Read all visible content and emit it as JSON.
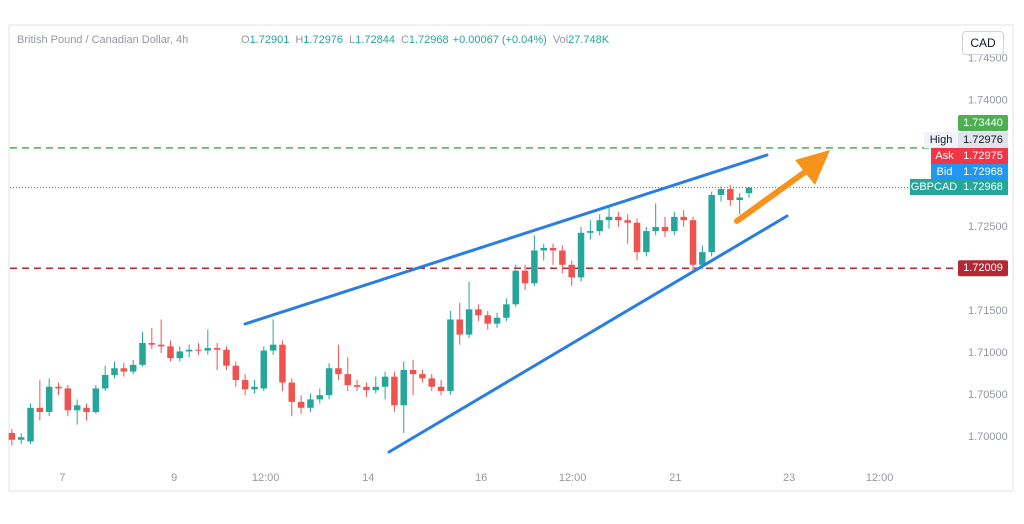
{
  "chart_data": {
    "type": "candlestick",
    "title": "British Pound / Canadian Dollar, 4h",
    "quote": [
      {
        "key": "O",
        "value": "1.72901"
      },
      {
        "key": "H",
        "value": "1.72976"
      },
      {
        "key": "L",
        "value": "1.72844"
      },
      {
        "key": "C",
        "value": "1.72968"
      }
    ],
    "change": "+0.00067 (+0.04%)",
    "volume": {
      "key": "Vol",
      "value": "27.748K"
    },
    "currency": "CAD",
    "up_color": "#26a69a",
    "down_color": "#ef5350",
    "open": [
      1.7005,
      1.6997,
      1.6995,
      1.7035,
      1.703,
      1.706,
      1.7058,
      1.7032,
      1.7035,
      1.703,
      1.7058,
      1.7074,
      1.7082,
      1.7078,
      1.7086,
      1.7112,
      1.711,
      1.7108,
      1.7094,
      1.7102,
      1.7104,
      1.7103,
      1.7106,
      1.7104,
      1.7085,
      1.7068,
      1.7057,
      1.7058,
      1.7103,
      1.711,
      1.7065,
      1.7042,
      1.7035,
      1.7045,
      1.705,
      1.7082,
      1.7075,
      1.7062,
      1.706,
      1.7056,
      1.706,
      1.7072,
      1.7038,
      1.708,
      1.7075,
      1.707,
      1.706,
      1.7055,
      1.714,
      1.7122,
      1.7152,
      1.7145,
      1.7135,
      1.7142,
      1.7158,
      1.7198,
      1.7183,
      1.7222,
      1.7225,
      1.7222,
      1.7205,
      1.719,
      1.7243,
      1.7245,
      1.7258,
      1.7262,
      1.7258,
      1.7255,
      1.722,
      1.7245,
      1.725,
      1.7245,
      1.7262,
      1.7258,
      1.7205,
      1.722,
      1.7288,
      1.7295,
      1.7282,
      1.72901
    ],
    "high": [
      1.701,
      1.7005,
      1.704,
      1.7068,
      1.707,
      1.7065,
      1.7062,
      1.7045,
      1.704,
      1.7062,
      1.7085,
      1.709,
      1.7088,
      1.7092,
      1.7125,
      1.713,
      1.714,
      1.7115,
      1.7108,
      1.711,
      1.7112,
      1.7128,
      1.7112,
      1.7108,
      1.709,
      1.7075,
      1.7068,
      1.7108,
      1.714,
      1.7115,
      1.707,
      1.705,
      1.7052,
      1.7058,
      1.7088,
      1.711,
      1.7095,
      1.7068,
      1.7065,
      1.7072,
      1.7078,
      1.7078,
      1.709,
      1.7092,
      1.708,
      1.7075,
      1.7068,
      1.715,
      1.716,
      1.7185,
      1.7158,
      1.715,
      1.7148,
      1.7165,
      1.7205,
      1.7205,
      1.724,
      1.723,
      1.723,
      1.7228,
      1.721,
      1.725,
      1.7258,
      1.7265,
      1.7275,
      1.7268,
      1.7265,
      1.726,
      1.725,
      1.7278,
      1.7262,
      1.7268,
      1.727,
      1.7262,
      1.7228,
      1.7292,
      1.7298,
      1.73,
      1.729,
      1.72976
    ],
    "low": [
      1.699,
      1.6992,
      1.6992,
      1.702,
      1.7025,
      1.705,
      1.7025,
      1.7015,
      1.702,
      1.7028,
      1.7055,
      1.707,
      1.7072,
      1.7075,
      1.7084,
      1.7105,
      1.71,
      1.709,
      1.709,
      1.7095,
      1.7098,
      1.7098,
      1.708,
      1.708,
      1.706,
      1.705,
      1.7052,
      1.7055,
      1.7098,
      1.7055,
      1.7025,
      1.7028,
      1.703,
      1.704,
      1.7045,
      1.7068,
      1.7055,
      1.7055,
      1.7048,
      1.7052,
      1.7045,
      1.703,
      1.7005,
      1.705,
      1.7065,
      1.7055,
      1.705,
      1.705,
      1.711,
      1.7118,
      1.7138,
      1.7128,
      1.713,
      1.7138,
      1.7155,
      1.7175,
      1.718,
      1.721,
      1.7205,
      1.7195,
      1.718,
      1.7185,
      1.7235,
      1.724,
      1.7248,
      1.725,
      1.723,
      1.721,
      1.7215,
      1.724,
      1.7238,
      1.724,
      1.725,
      1.7195,
      1.72,
      1.7215,
      1.728,
      1.7275,
      1.7265,
      1.72844
    ],
    "close": [
      1.6997,
      1.7,
      1.7035,
      1.703,
      1.706,
      1.7058,
      1.7032,
      1.7038,
      1.703,
      1.7058,
      1.7074,
      1.7082,
      1.7078,
      1.7086,
      1.7112,
      1.711,
      1.7108,
      1.7094,
      1.7102,
      1.7104,
      1.7103,
      1.7106,
      1.7104,
      1.7085,
      1.7068,
      1.7057,
      1.706,
      1.7103,
      1.711,
      1.7065,
      1.7042,
      1.7035,
      1.7045,
      1.705,
      1.7082,
      1.7075,
      1.7062,
      1.706,
      1.7056,
      1.706,
      1.7072,
      1.7038,
      1.708,
      1.7075,
      1.707,
      1.706,
      1.7055,
      1.714,
      1.7122,
      1.7152,
      1.7145,
      1.7135,
      1.7142,
      1.7158,
      1.7198,
      1.7183,
      1.7222,
      1.7225,
      1.7222,
      1.7205,
      1.719,
      1.7243,
      1.7245,
      1.7258,
      1.7262,
      1.7258,
      1.7255,
      1.722,
      1.7245,
      1.725,
      1.7245,
      1.7262,
      1.7258,
      1.7205,
      1.722,
      1.7288,
      1.7295,
      1.7282,
      1.7285,
      1.72968
    ],
    "xlim": [
      -0.2,
      101.4
    ],
    "xticks": [
      {
        "value": 5.4,
        "label": "7"
      },
      {
        "value": 17.4,
        "label": "9"
      },
      {
        "value": 27.2,
        "label": "12:00"
      },
      {
        "value": 38.2,
        "label": "14"
      },
      {
        "value": 50.3,
        "label": "16"
      },
      {
        "value": 60.1,
        "label": "12:00"
      },
      {
        "value": 71.1,
        "label": "21"
      },
      {
        "value": 83.3,
        "label": "23"
      },
      {
        "value": 93.0,
        "label": "12:00"
      }
    ],
    "ylim": [
      1.6967,
      1.749
    ],
    "yticks": [
      {
        "value": 1.7,
        "label": "1.70000"
      },
      {
        "value": 1.705,
        "label": "1.70500"
      },
      {
        "value": 1.71,
        "label": "1.71000"
      },
      {
        "value": 1.715,
        "label": "1.71500"
      },
      {
        "value": 1.725,
        "label": "1.72500"
      },
      {
        "value": 1.74,
        "label": "1.74000"
      },
      {
        "value": 1.745,
        "label": "1.74500"
      }
    ],
    "levels": [
      {
        "value": 1.7344,
        "label": "1.73440",
        "color": "#4caf50"
      },
      {
        "value": 1.72009,
        "label": "1.72009",
        "color": "#b22833"
      }
    ],
    "price_tags": [
      {
        "name": "High",
        "value": 1.72976,
        "label": "1.72976",
        "color": "#e0e3eb"
      },
      {
        "name": "Ask",
        "value": 1.72975,
        "label": "1.72975",
        "color": "#f23645"
      },
      {
        "name": "Bid",
        "value": 1.72968,
        "label": "1.72968",
        "color": "#2196f3"
      },
      {
        "name": "GBPCAD",
        "value": 1.72968,
        "label": "1.72968",
        "color": "#26a69a"
      }
    ]
  }
}
